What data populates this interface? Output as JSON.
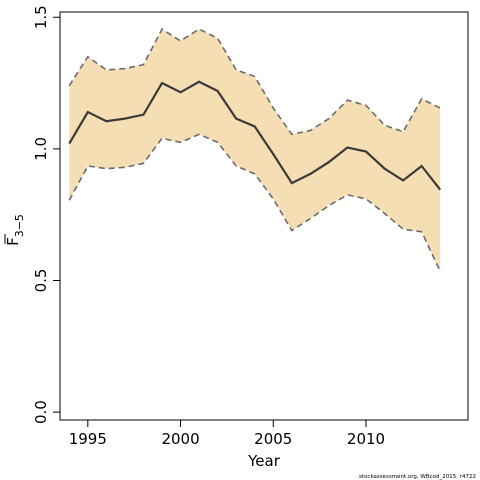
{
  "chart_data": {
    "type": "line",
    "title": "",
    "xlabel": "Year",
    "ylabel": "F3-5 (mean)",
    "ylabel_main": "F",
    "ylabel_sub": "3−5",
    "xlim": [
      1993.5,
      2015.5
    ],
    "ylim": [
      -0.03,
      1.52
    ],
    "x_ticks": [
      1995,
      2000,
      2005,
      2010
    ],
    "y_ticks": [
      0.0,
      0.5,
      1.0,
      1.5
    ],
    "y_tick_labels": [
      "0.0",
      "0.5",
      "1.0",
      "1.5"
    ],
    "x": [
      1994,
      1995,
      1996,
      1997,
      1998,
      1999,
      2000,
      2001,
      2002,
      2003,
      2004,
      2005,
      2006,
      2007,
      2008,
      2009,
      2010,
      2011,
      2012,
      2013,
      2014
    ],
    "series": [
      {
        "role": "estimate",
        "values": [
          1.02,
          1.14,
          1.105,
          1.115,
          1.13,
          1.25,
          1.215,
          1.255,
          1.22,
          1.115,
          1.085,
          0.98,
          0.87,
          0.905,
          0.95,
          1.005,
          0.99,
          0.925,
          0.88,
          0.935,
          0.845
        ],
        "color": "#3a3a3a",
        "style": "solid"
      },
      {
        "role": "upper",
        "values": [
          1.24,
          1.35,
          1.3,
          1.305,
          1.32,
          1.455,
          1.41,
          1.455,
          1.42,
          1.3,
          1.275,
          1.155,
          1.055,
          1.07,
          1.115,
          1.185,
          1.165,
          1.09,
          1.065,
          1.19,
          1.155
        ],
        "color": "#6b6b6b",
        "style": "dashed"
      },
      {
        "role": "lower",
        "values": [
          0.805,
          0.935,
          0.925,
          0.93,
          0.945,
          1.04,
          1.025,
          1.055,
          1.025,
          0.935,
          0.905,
          0.81,
          0.69,
          0.735,
          0.785,
          0.825,
          0.81,
          0.755,
          0.695,
          0.685,
          0.535
        ],
        "color": "#6b6b6b",
        "style": "dashed"
      }
    ],
    "band_color": "#f5deb3",
    "grid": false,
    "credit": "stockassessment.org, WBcod_2015, r4722"
  }
}
